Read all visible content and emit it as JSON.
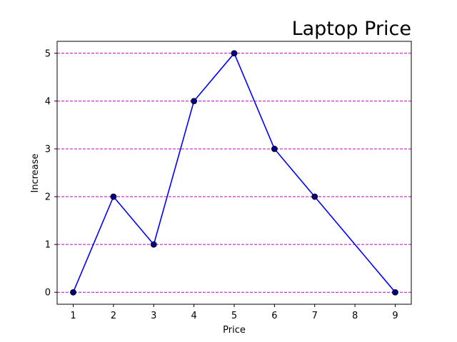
{
  "chart_data": {
    "type": "line",
    "title": "Laptop Price",
    "xlabel": "Price",
    "ylabel": "Increase",
    "x": [
      1,
      2,
      3,
      4,
      5,
      6,
      7,
      9
    ],
    "y": [
      0,
      2,
      1,
      4,
      5,
      3,
      2,
      0
    ],
    "xticks": [
      "1",
      "2",
      "3",
      "4",
      "5",
      "6",
      "7",
      "8",
      "9"
    ],
    "yticks": [
      "0",
      "1",
      "2",
      "3",
      "4",
      "5"
    ],
    "xlim": [
      0.6,
      9.4
    ],
    "ylim": [
      -0.25,
      5.25
    ],
    "grid": "horizontal dashed",
    "colors": {
      "line": "#0000ff",
      "marker": "#000080",
      "grid": "#bf00bf"
    }
  }
}
